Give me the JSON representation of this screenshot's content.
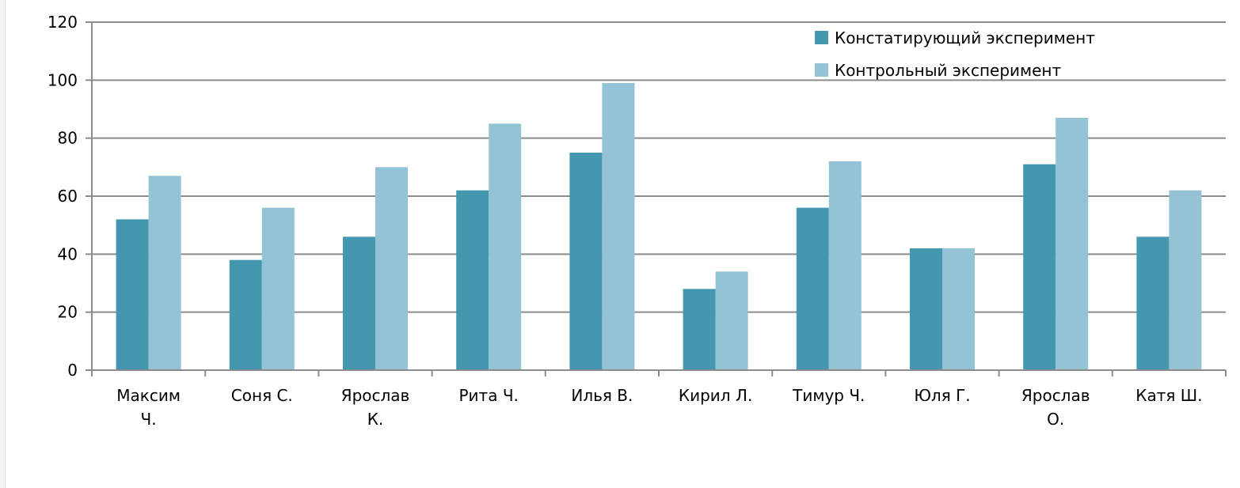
{
  "chart_data": {
    "type": "bar",
    "categories": [
      [
        "Максим",
        "Ч."
      ],
      [
        "Соня С."
      ],
      [
        "Ярослав",
        "К."
      ],
      [
        "Рита Ч."
      ],
      [
        "Илья В."
      ],
      [
        "Кирил Л."
      ],
      [
        "Тимур Ч."
      ],
      [
        "Юля Г."
      ],
      [
        "Ярослав",
        "О."
      ],
      [
        "Катя Ш."
      ]
    ],
    "series": [
      {
        "name": "Констатирующий эксперимент",
        "color": "#4397AF",
        "values": [
          52,
          38,
          46,
          62,
          75,
          28,
          56,
          42,
          71,
          46
        ]
      },
      {
        "name": "Контрольный эксперимент",
        "color": "#93C3D4",
        "values": [
          67,
          56,
          70,
          85,
          99,
          34,
          72,
          42,
          87,
          62
        ]
      }
    ],
    "yticks": [
      "0",
      "20",
      "40",
      "60",
      "80",
      "100",
      "120"
    ],
    "ylim": [
      0,
      120
    ],
    "grid": true,
    "legend_position": "top-right",
    "title": "",
    "xlabel": "",
    "ylabel": ""
  }
}
